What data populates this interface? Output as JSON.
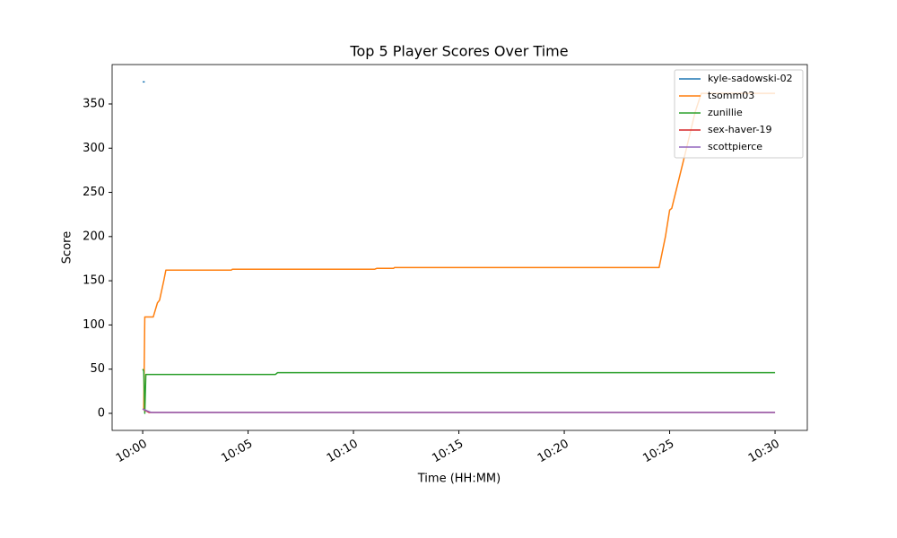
{
  "chart_data": {
    "type": "line",
    "title": "Top 5 Player Scores Over Time",
    "xlabel": "Time (HH:MM)",
    "ylabel": "Score",
    "xlim": [
      -1.45,
      31.53
    ],
    "xticks": [
      {
        "value": 0,
        "label": "10:00"
      },
      {
        "value": 5,
        "label": "10:05"
      },
      {
        "value": 10,
        "label": "10:10"
      },
      {
        "value": 15,
        "label": "10:15"
      },
      {
        "value": 20,
        "label": "10:20"
      },
      {
        "value": 25,
        "label": "10:25"
      },
      {
        "value": 30,
        "label": "10:30"
      }
    ],
    "ylim": [
      -19.3,
      394.6
    ],
    "yticks": [
      0,
      50,
      100,
      150,
      200,
      250,
      300,
      350
    ],
    "grid": false,
    "legend": "upper right",
    "series": [
      {
        "name": "kyle-sadowski-02",
        "color": "#1f77b4",
        "x": [
          0,
          0.1
        ],
        "values": [
          375,
          375
        ]
      },
      {
        "name": "tsomm03",
        "color": "#ff7f0e",
        "x": [
          0.05,
          0.1,
          0.5,
          0.7,
          0.8,
          1.0,
          1.1,
          4.2,
          4.25,
          11,
          11.1,
          11.9,
          11.95,
          24.5,
          24.8,
          25.0,
          25.1,
          25.8,
          26.2,
          26.5,
          30
        ],
        "values": [
          5,
          109,
          109,
          125,
          128,
          150,
          162,
          162,
          163,
          163,
          164,
          164,
          165,
          165,
          200,
          230,
          232,
          300,
          340,
          362,
          362
        ]
      },
      {
        "name": "zunillie",
        "color": "#2ca02c",
        "x": [
          0,
          0.05,
          0.1,
          0.15,
          0.2,
          6.3,
          6.4,
          30
        ],
        "values": [
          50,
          48,
          0,
          44,
          44,
          44,
          46,
          46
        ]
      },
      {
        "name": "sex-haver-19",
        "color": "#d62728",
        "x": [
          0,
          0.3,
          30
        ],
        "values": [
          5,
          1,
          1
        ]
      },
      {
        "name": "scottpierce",
        "color": "#9467bd",
        "x": [
          0,
          0.2,
          0.4,
          30
        ],
        "values": [
          5,
          3,
          1,
          1
        ]
      }
    ]
  }
}
